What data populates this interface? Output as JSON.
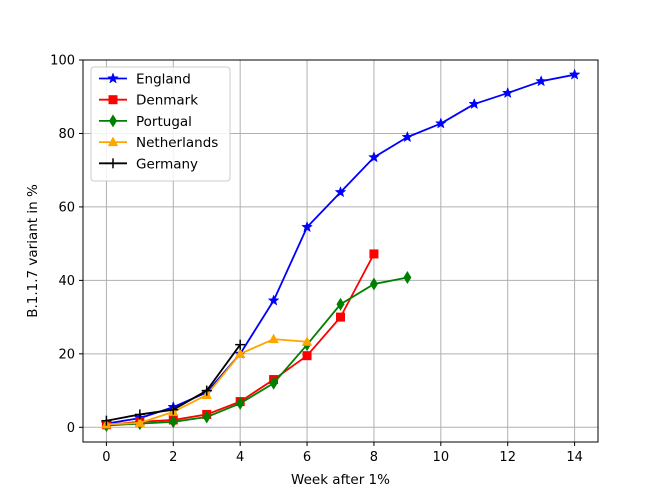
{
  "chart_data": {
    "type": "line",
    "title": "",
    "xlabel": "Week after 1%",
    "ylabel": "B.1.1.7 variant in %",
    "xlim": [
      -0.7,
      14.7
    ],
    "ylim": [
      -4,
      100
    ],
    "xticks": [
      0,
      2,
      4,
      6,
      8,
      10,
      12,
      14
    ],
    "yticks": [
      0,
      20,
      40,
      60,
      80,
      100
    ],
    "grid": true,
    "legend_position": "top-left",
    "series": [
      {
        "name": "England",
        "color": "#0000ff",
        "marker": "star",
        "x": [
          0,
          1,
          2,
          3,
          4,
          5,
          6,
          7,
          8,
          9,
          10,
          11,
          12,
          13,
          14
        ],
        "y": [
          1,
          2.5,
          5.5,
          9.5,
          20,
          34.5,
          54.5,
          64,
          73.5,
          79,
          82.7,
          88,
          91,
          94.2,
          96
        ]
      },
      {
        "name": "Denmark",
        "color": "#ff0000",
        "marker": "square",
        "x": [
          0,
          1,
          2,
          3,
          4,
          5,
          6,
          7,
          8
        ],
        "y": [
          0.7,
          1.5,
          2,
          3.5,
          7,
          13,
          19.5,
          30,
          47.2
        ]
      },
      {
        "name": "Portugal",
        "color": "#008000",
        "marker": "diamond",
        "x": [
          0,
          1,
          2,
          3,
          4,
          5,
          6,
          7,
          8,
          9
        ],
        "y": [
          0.5,
          1,
          1.5,
          2.8,
          6.5,
          12,
          22.5,
          33.5,
          39,
          40.8
        ]
      },
      {
        "name": "Netherlands",
        "color": "#ffa500",
        "marker": "triangle",
        "x": [
          0,
          1,
          2,
          3,
          4,
          5,
          6
        ],
        "y": [
          0.8,
          1.2,
          4.2,
          8.8,
          20,
          24,
          23.3
        ]
      },
      {
        "name": "Germany",
        "color": "#000000",
        "marker": "plus",
        "x": [
          0,
          1,
          2,
          3,
          4
        ],
        "y": [
          1.8,
          3.5,
          4.8,
          10,
          22.5
        ]
      }
    ]
  }
}
